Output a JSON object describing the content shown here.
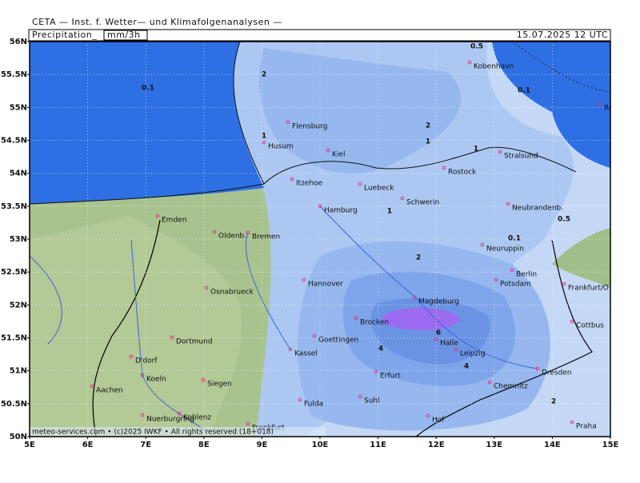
{
  "header": {
    "title": "CETA — Inst. f. Wetter— und Klimafolgenanalysen —",
    "variable": "Precipitation_",
    "unit": "mm/3h",
    "valid_time": "15.07.2025 12 UTC"
  },
  "map": {
    "lat_labels": [
      "56N",
      "55.5N",
      "55N",
      "54.5N",
      "54N",
      "53.5N",
      "53N",
      "52.5N",
      "52N",
      "51.5N",
      "51N",
      "50.5N",
      "50N"
    ],
    "lon_labels": [
      "5E",
      "6E",
      "7E",
      "8E",
      "9E",
      "10E",
      "11E",
      "12E",
      "13E",
      "14E",
      "15E"
    ],
    "cities": [
      "Kobenhavn",
      "Ronne",
      "Flensburg",
      "Husum",
      "Kiel",
      "Rostock",
      "Stralsund",
      "Itzehoe",
      "Luebeck",
      "Schwerin",
      "Hamburg",
      "Neubrandenb.",
      "Emden",
      "Oldenb.",
      "Bremen",
      "Neuruppin",
      "Berlin",
      "Potsdam",
      "Hannover",
      "Frankfurt/O",
      "Osnabrueck",
      "Magdeburg",
      "Brocken",
      "Cottbus",
      "Dortmund",
      "Goettingen",
      "Halle",
      "Kassel",
      "Leipzig",
      "D'dorf",
      "Dresden",
      "Erfurt",
      "Koeln",
      "Siegen",
      "Chemnitz",
      "Aachen",
      "Suhl",
      "Fulda",
      "Nuerburgring",
      "Koblenz",
      "Hof",
      "Frankfurt",
      "Praha"
    ],
    "contour_labels": [
      "0.5",
      "0.1",
      "2",
      "0.1",
      "1",
      "2",
      "1",
      "1",
      "1",
      "0.5",
      "0.1",
      "2",
      "6",
      "4",
      "4",
      "2"
    ],
    "footer": "meteo-services.com • (c)2025 IWKF • All rights reserved (18+018)"
  }
}
